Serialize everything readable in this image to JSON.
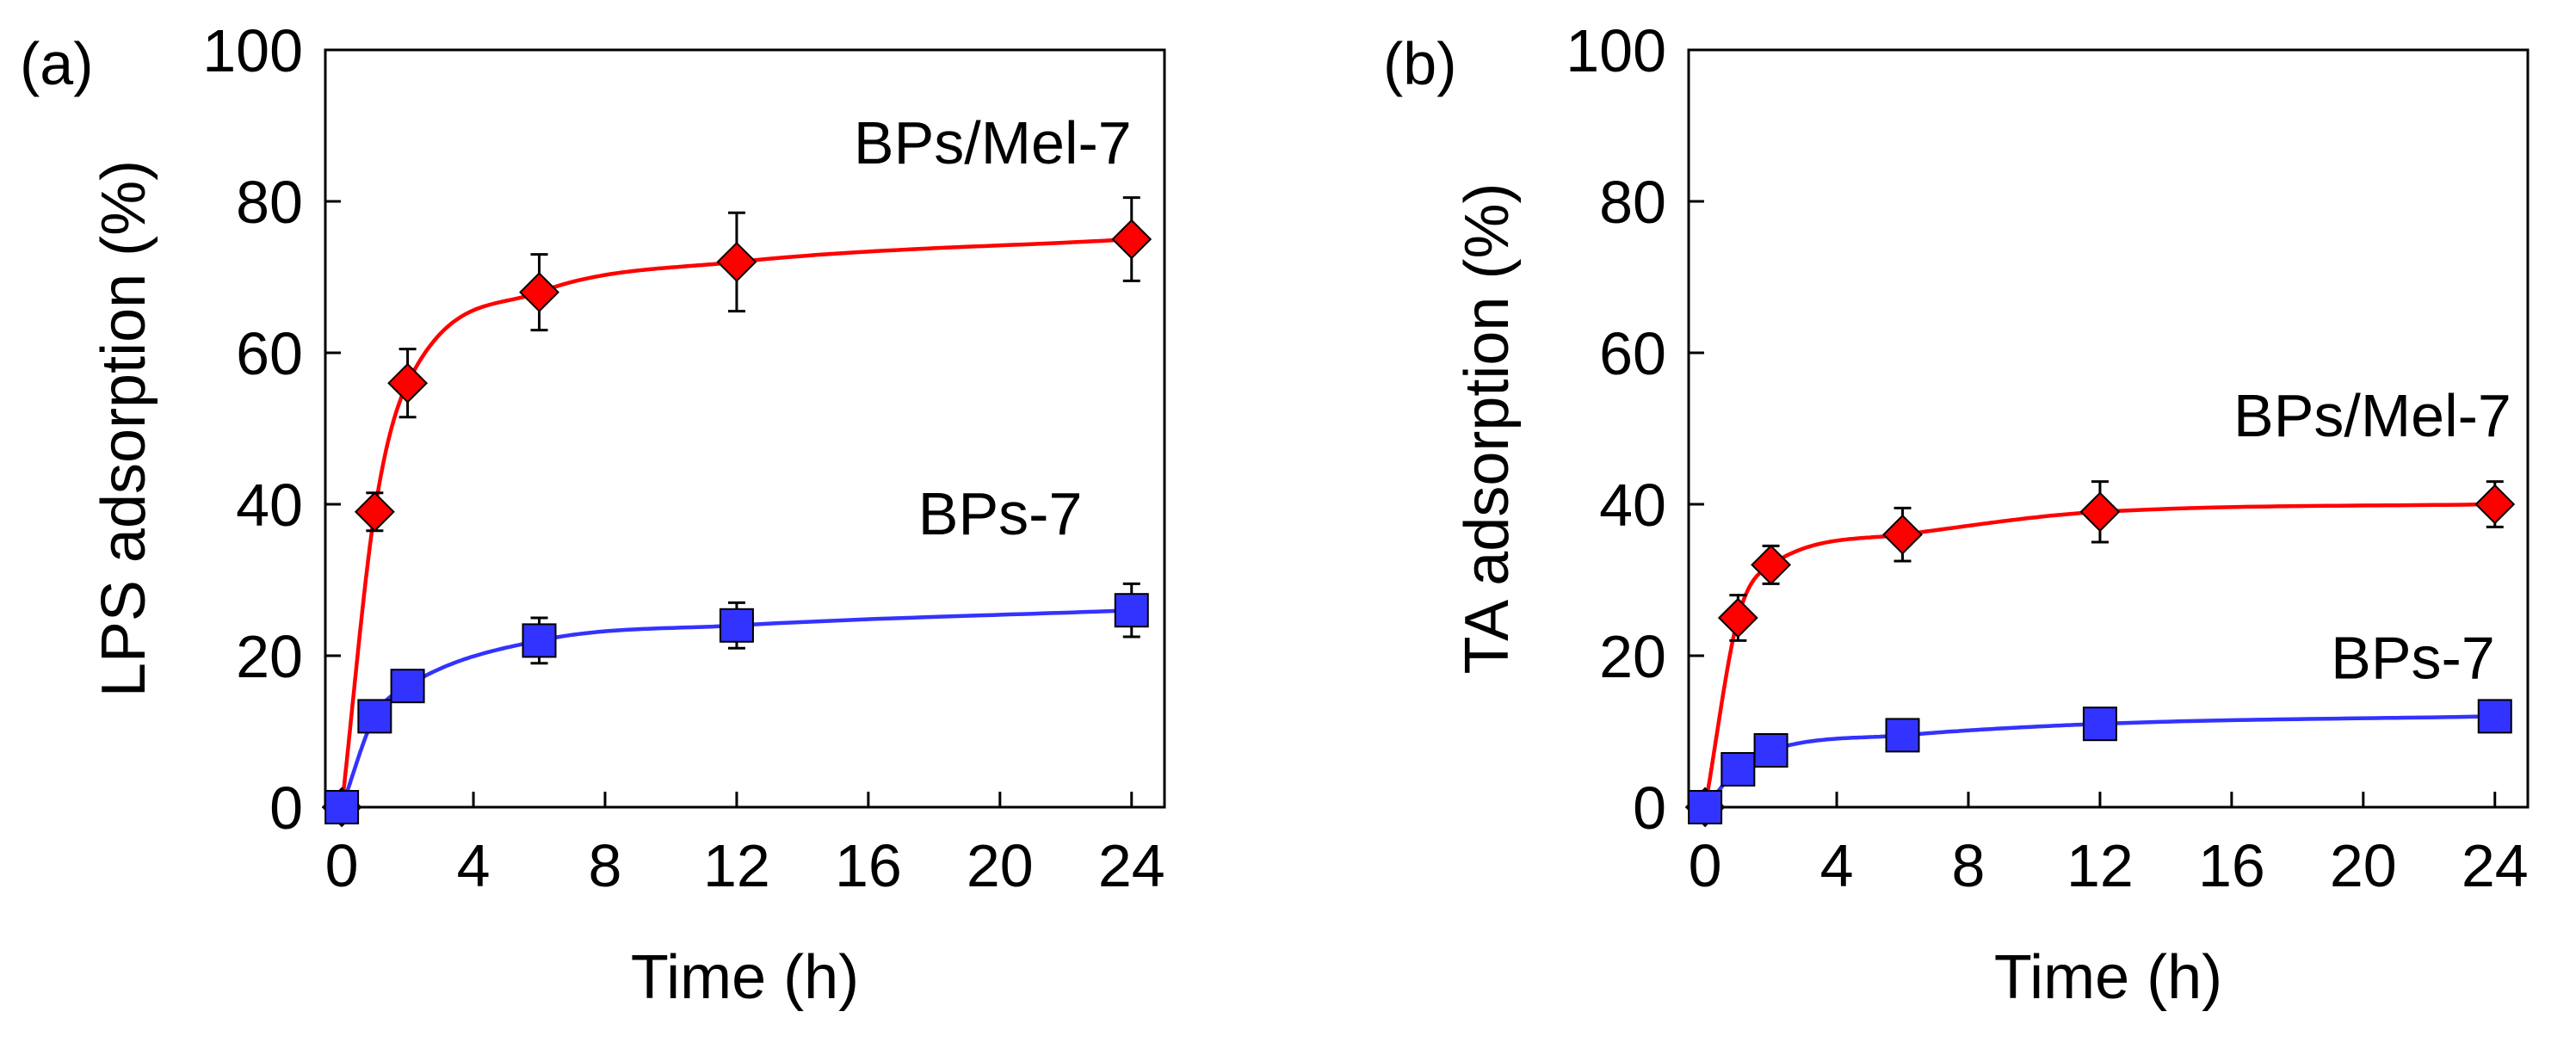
{
  "chart_data": [
    {
      "type": "line",
      "panel_label": "(a)",
      "title": "",
      "xlabel": "Time (h)",
      "ylabel": "LPS adsorption (%)",
      "xlim": [
        -0.5,
        25
      ],
      "ylim": [
        0,
        100
      ],
      "xticks": [
        0,
        4,
        8,
        12,
        16,
        20,
        24
      ],
      "yticks": [
        0,
        20,
        40,
        60,
        80,
        100
      ],
      "xtick_labels": [
        "0",
        "4",
        "8",
        "12",
        "16",
        "20",
        "24"
      ],
      "ytick_labels": [
        "0",
        "20",
        "40",
        "60",
        "80",
        "100"
      ],
      "grid": false,
      "legend": "none",
      "series": [
        {
          "name": "BPs/Mel-7",
          "color": "#ff0000",
          "marker": "diamond",
          "x": [
            0,
            1,
            2,
            6,
            12,
            24
          ],
          "values": [
            0,
            39,
            56,
            68,
            72,
            75
          ],
          "errors": [
            0,
            2.5,
            4.5,
            5,
            6.5,
            5.5
          ],
          "label_x": 24,
          "label_y": 85
        },
        {
          "name": "BPs-7",
          "color": "#3333ff",
          "marker": "square",
          "x": [
            0,
            1,
            2,
            6,
            12,
            24
          ],
          "values": [
            0,
            12,
            16,
            22,
            24,
            26
          ],
          "errors": [
            0,
            1.5,
            1.5,
            3,
            3,
            3.5
          ],
          "label_x": 22.5,
          "label_y": 36
        }
      ]
    },
    {
      "type": "line",
      "panel_label": "(b)",
      "title": "",
      "xlabel": "Time (h)",
      "ylabel": "TA adsorption (%)",
      "xlim": [
        -0.5,
        25
      ],
      "ylim": [
        0,
        100
      ],
      "xticks": [
        0,
        4,
        8,
        12,
        16,
        20,
        24
      ],
      "yticks": [
        0,
        20,
        40,
        60,
        80,
        100
      ],
      "xtick_labels": [
        "0",
        "4",
        "8",
        "12",
        "16",
        "20",
        "24"
      ],
      "ytick_labels": [
        "0",
        "20",
        "40",
        "60",
        "80",
        "100"
      ],
      "grid": false,
      "legend": "none",
      "series": [
        {
          "name": "BPs/Mel-7",
          "color": "#ff0000",
          "marker": "diamond",
          "x": [
            0,
            1,
            2,
            6,
            12,
            24
          ],
          "values": [
            0,
            25,
            32,
            36,
            39,
            40
          ],
          "errors": [
            0,
            3,
            2.5,
            3.5,
            4,
            3
          ],
          "label_x": 24.5,
          "label_y": 49
        },
        {
          "name": "BPs-7",
          "color": "#3333ff",
          "marker": "square",
          "x": [
            0,
            1,
            2,
            6,
            12,
            24
          ],
          "values": [
            0,
            5,
            7.5,
            9.5,
            11,
            12
          ],
          "errors": [
            0,
            1,
            1,
            1,
            1,
            1
          ],
          "label_x": 24,
          "label_y": 17
        }
      ]
    }
  ]
}
